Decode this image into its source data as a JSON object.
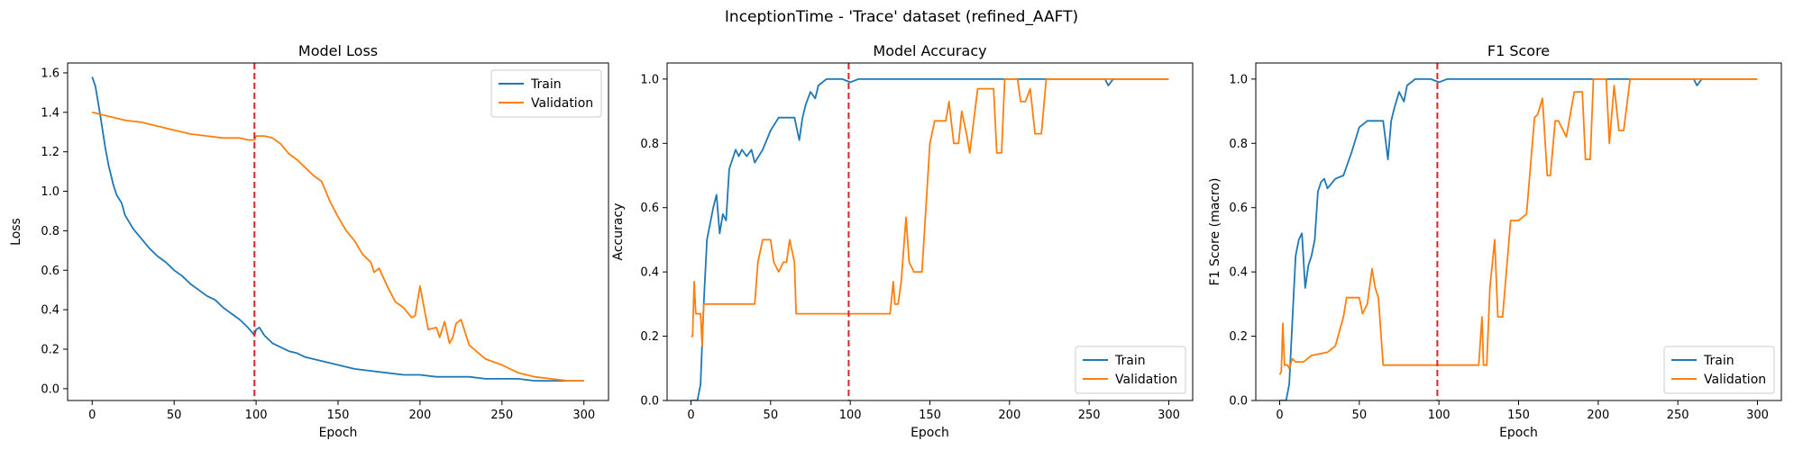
{
  "figure": {
    "suptitle": "InceptionTime - 'Trace' dataset (refined_AAFT)"
  },
  "colors": {
    "train": "#1f77b4",
    "validation": "#ff7f0e",
    "vline": "#d62728"
  },
  "chart_data": [
    {
      "type": "line",
      "title": "Model Loss",
      "xlabel": "Epoch",
      "ylabel": "Loss",
      "xlim": [
        -15,
        315
      ],
      "ylim": [
        -0.06,
        1.65
      ],
      "xticks": [
        0,
        50,
        100,
        150,
        200,
        250,
        300
      ],
      "yticks": [
        0.0,
        0.2,
        0.4,
        0.6,
        0.8,
        1.0,
        1.2,
        1.4,
        1.6
      ],
      "ytick_labels": [
        "0.0",
        "0.2",
        "0.4",
        "0.6",
        "0.8",
        "1.0",
        "1.2",
        "1.4",
        "1.6"
      ],
      "vline": 99,
      "legend": {
        "position": "top-right",
        "entries": [
          "Train",
          "Validation"
        ]
      },
      "series": [
        {
          "name": "Train",
          "x": [
            0,
            2,
            5,
            8,
            10,
            13,
            15,
            18,
            20,
            25,
            30,
            35,
            40,
            45,
            50,
            55,
            60,
            65,
            70,
            75,
            80,
            85,
            90,
            95,
            99,
            100,
            102,
            105,
            110,
            115,
            120,
            125,
            130,
            140,
            150,
            160,
            170,
            180,
            190,
            200,
            210,
            220,
            230,
            240,
            250,
            260,
            270,
            280,
            290,
            300
          ],
          "values": [
            1.58,
            1.53,
            1.38,
            1.22,
            1.13,
            1.03,
            0.98,
            0.94,
            0.88,
            0.81,
            0.76,
            0.71,
            0.67,
            0.64,
            0.6,
            0.57,
            0.53,
            0.5,
            0.47,
            0.45,
            0.41,
            0.38,
            0.35,
            0.31,
            0.27,
            0.3,
            0.31,
            0.27,
            0.23,
            0.21,
            0.19,
            0.18,
            0.16,
            0.14,
            0.12,
            0.1,
            0.09,
            0.08,
            0.07,
            0.07,
            0.06,
            0.06,
            0.06,
            0.05,
            0.05,
            0.05,
            0.04,
            0.04,
            0.04,
            0.04
          ]
        },
        {
          "name": "Validation",
          "x": [
            0,
            5,
            10,
            20,
            30,
            40,
            50,
            60,
            70,
            80,
            90,
            95,
            99,
            100,
            105,
            110,
            115,
            120,
            125,
            130,
            135,
            140,
            145,
            150,
            155,
            160,
            165,
            170,
            172,
            175,
            180,
            185,
            190,
            195,
            197,
            200,
            205,
            210,
            212,
            215,
            218,
            220,
            222,
            225,
            230,
            240,
            250,
            260,
            270,
            280,
            290,
            300
          ],
          "values": [
            1.4,
            1.39,
            1.38,
            1.36,
            1.35,
            1.33,
            1.31,
            1.29,
            1.28,
            1.27,
            1.27,
            1.26,
            1.26,
            1.28,
            1.28,
            1.27,
            1.24,
            1.19,
            1.16,
            1.12,
            1.08,
            1.05,
            0.95,
            0.87,
            0.8,
            0.75,
            0.68,
            0.64,
            0.59,
            0.61,
            0.52,
            0.44,
            0.41,
            0.36,
            0.37,
            0.52,
            0.3,
            0.31,
            0.26,
            0.34,
            0.23,
            0.26,
            0.33,
            0.35,
            0.22,
            0.15,
            0.12,
            0.08,
            0.06,
            0.05,
            0.04,
            0.04
          ]
        }
      ]
    },
    {
      "type": "line",
      "title": "Model Accuracy",
      "xlabel": "Epoch",
      "ylabel": "Accuracy",
      "xlim": [
        -15,
        315
      ],
      "ylim": [
        0,
        1.05
      ],
      "xticks": [
        0,
        50,
        100,
        150,
        200,
        250,
        300
      ],
      "yticks": [
        0.0,
        0.2,
        0.4,
        0.6,
        0.8,
        1.0
      ],
      "ytick_labels": [
        "0.0",
        "0.2",
        "0.4",
        "0.6",
        "0.8",
        "1.0"
      ],
      "vline": 99,
      "legend": {
        "position": "bottom-right",
        "entries": [
          "Train",
          "Validation"
        ]
      },
      "series": [
        {
          "name": "Train",
          "x": [
            0,
            4,
            6,
            8,
            10,
            12,
            14,
            16,
            18,
            20,
            22,
            24,
            26,
            28,
            30,
            32,
            35,
            38,
            40,
            45,
            50,
            55,
            60,
            65,
            68,
            70,
            72,
            75,
            78,
            80,
            85,
            90,
            95,
            100,
            105,
            110,
            150,
            200,
            260,
            262,
            265,
            300
          ],
          "values": [
            0.0,
            0.0,
            0.05,
            0.3,
            0.5,
            0.55,
            0.6,
            0.64,
            0.52,
            0.58,
            0.56,
            0.72,
            0.75,
            0.78,
            0.76,
            0.78,
            0.76,
            0.78,
            0.74,
            0.78,
            0.84,
            0.88,
            0.88,
            0.88,
            0.81,
            0.88,
            0.92,
            0.96,
            0.94,
            0.98,
            1.0,
            1.0,
            1.0,
            0.99,
            1.0,
            1.0,
            1.0,
            1.0,
            1.0,
            0.98,
            1.0,
            1.0
          ]
        },
        {
          "name": "Validation",
          "x": [
            0,
            1,
            2,
            3,
            5,
            6,
            7,
            8,
            10,
            20,
            30,
            40,
            42,
            45,
            50,
            52,
            55,
            58,
            60,
            62,
            65,
            66,
            70,
            80,
            90,
            100,
            110,
            120,
            125,
            127,
            128,
            130,
            132,
            135,
            137,
            140,
            145,
            150,
            153,
            155,
            160,
            162,
            165,
            168,
            170,
            173,
            175,
            180,
            185,
            190,
            192,
            195,
            197,
            200,
            205,
            207,
            210,
            213,
            216,
            220,
            223,
            225,
            300
          ],
          "values": [
            0.2,
            0.2,
            0.37,
            0.27,
            0.27,
            0.27,
            0.17,
            0.3,
            0.3,
            0.3,
            0.3,
            0.3,
            0.43,
            0.5,
            0.5,
            0.43,
            0.4,
            0.43,
            0.43,
            0.5,
            0.43,
            0.27,
            0.27,
            0.27,
            0.27,
            0.27,
            0.27,
            0.27,
            0.27,
            0.37,
            0.3,
            0.3,
            0.37,
            0.57,
            0.43,
            0.4,
            0.4,
            0.8,
            0.87,
            0.87,
            0.87,
            0.93,
            0.8,
            0.8,
            0.9,
            0.83,
            0.77,
            0.97,
            0.97,
            0.97,
            0.77,
            0.77,
            1.0,
            1.0,
            1.0,
            0.93,
            0.93,
            0.97,
            0.83,
            0.83,
            1.0,
            1.0,
            1.0
          ]
        }
      ]
    },
    {
      "type": "line",
      "title": "F1 Score",
      "xlabel": "Epoch",
      "ylabel": "F1 Score (macro)",
      "xlim": [
        -15,
        315
      ],
      "ylim": [
        0,
        1.05
      ],
      "xticks": [
        0,
        50,
        100,
        150,
        200,
        250,
        300
      ],
      "yticks": [
        0.0,
        0.2,
        0.4,
        0.6,
        0.8,
        1.0
      ],
      "ytick_labels": [
        "0.0",
        "0.2",
        "0.4",
        "0.6",
        "0.8",
        "1.0"
      ],
      "vline": 99,
      "legend": {
        "position": "bottom-right",
        "entries": [
          "Train",
          "Validation"
        ]
      },
      "series": [
        {
          "name": "Train",
          "x": [
            0,
            4,
            6,
            8,
            10,
            12,
            14,
            16,
            18,
            20,
            22,
            24,
            26,
            28,
            30,
            35,
            40,
            45,
            50,
            55,
            60,
            65,
            68,
            70,
            72,
            75,
            78,
            80,
            85,
            90,
            95,
            100,
            105,
            110,
            150,
            200,
            260,
            262,
            265,
            300
          ],
          "values": [
            0.0,
            0.0,
            0.05,
            0.25,
            0.45,
            0.5,
            0.52,
            0.35,
            0.42,
            0.45,
            0.5,
            0.65,
            0.68,
            0.69,
            0.66,
            0.69,
            0.7,
            0.77,
            0.85,
            0.87,
            0.87,
            0.87,
            0.75,
            0.87,
            0.91,
            0.96,
            0.93,
            0.98,
            1.0,
            1.0,
            1.0,
            0.99,
            1.0,
            1.0,
            1.0,
            1.0,
            1.0,
            0.98,
            1.0,
            1.0
          ]
        },
        {
          "name": "Validation",
          "x": [
            0,
            1,
            2,
            3,
            5,
            6,
            8,
            10,
            15,
            20,
            30,
            35,
            40,
            42,
            45,
            50,
            52,
            55,
            58,
            60,
            62,
            65,
            66,
            70,
            80,
            90,
            100,
            110,
            120,
            125,
            127,
            128,
            130,
            132,
            135,
            137,
            140,
            145,
            150,
            155,
            160,
            162,
            165,
            168,
            170,
            173,
            175,
            180,
            185,
            190,
            192,
            195,
            197,
            200,
            205,
            207,
            210,
            213,
            216,
            220,
            223,
            225,
            300
          ],
          "values": [
            0.08,
            0.09,
            0.24,
            0.11,
            0.11,
            0.1,
            0.13,
            0.12,
            0.12,
            0.14,
            0.15,
            0.17,
            0.26,
            0.32,
            0.32,
            0.32,
            0.27,
            0.3,
            0.41,
            0.35,
            0.32,
            0.11,
            0.11,
            0.11,
            0.11,
            0.11,
            0.11,
            0.11,
            0.11,
            0.11,
            0.26,
            0.11,
            0.11,
            0.35,
            0.5,
            0.26,
            0.26,
            0.56,
            0.56,
            0.58,
            0.88,
            0.89,
            0.94,
            0.7,
            0.7,
            0.87,
            0.87,
            0.82,
            0.96,
            0.96,
            0.75,
            0.75,
            1.0,
            1.0,
            1.0,
            0.8,
            0.98,
            0.84,
            0.84,
            1.0,
            1.0,
            1.0,
            1.0
          ]
        }
      ]
    }
  ]
}
